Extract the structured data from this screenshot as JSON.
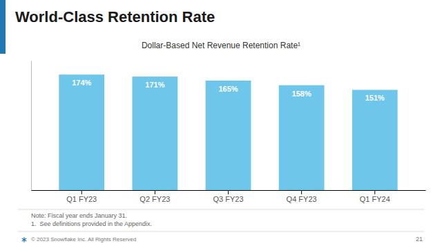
{
  "chart_data": {
    "type": "bar",
    "title": "World-Class Retention Rate",
    "subtitle": "Dollar-Based Net Revenue Retention Rate¹",
    "categories": [
      "Q1 FY23",
      "Q2 FY23",
      "Q3 FY23",
      "Q4 FY23",
      "Q1 FY24"
    ],
    "values": [
      174,
      171,
      165,
      158,
      151
    ],
    "value_labels": [
      "174%",
      "171%",
      "165%",
      "158%",
      "151%"
    ],
    "data_labels": true,
    "color": "#6EC6EA",
    "ylim": [
      0,
      195
    ],
    "tick_labels": "x",
    "annotations": [
      "Note: Fiscal year ends January 31.",
      "1.  See definitions provided in the Appendix.",
      "© 2023 Snowflake Inc. All Rights Reserved",
      "21"
    ]
  }
}
